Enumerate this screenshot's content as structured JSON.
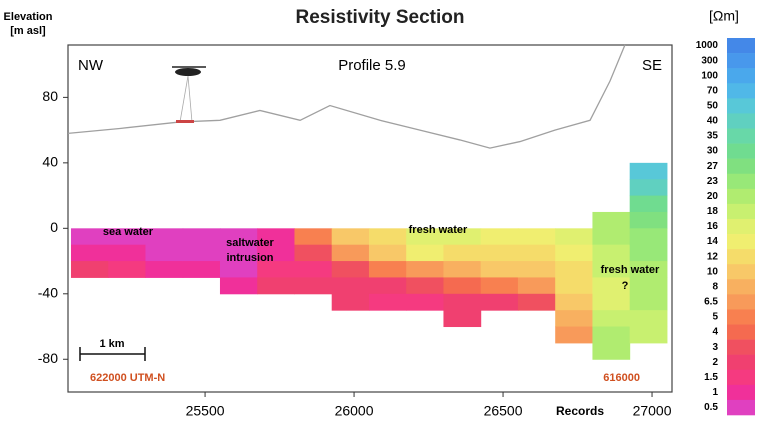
{
  "chart_data": {
    "type": "section",
    "title": "Resistivity Section",
    "y_label": [
      "Elevation",
      "[m asl]"
    ],
    "x_label": "Records",
    "annotations": {
      "left_end": "NW",
      "right_end": "SE",
      "profile": "Profile 5.9",
      "sea": "sea water",
      "intrusion": [
        "saltwater",
        "intrusion"
      ],
      "fresh": "fresh water",
      "fresh_deep": [
        "fresh water",
        "?"
      ],
      "scale": "1 km",
      "utm_left": "622000   UTM-N",
      "utm_right": "616000"
    },
    "xlim": [
      25040,
      27067
    ],
    "xticks": [
      25500,
      26000,
      26500,
      27000
    ],
    "ylim": [
      -100,
      112
    ],
    "yticks": [
      -80,
      -40,
      0,
      40,
      80
    ],
    "lines": [
      {
        "color": "#a0a0a0",
        "x": [
          25040,
          25214,
          25416,
          25550,
          25684,
          25819,
          25919,
          26087,
          26221,
          26355,
          26456,
          26557,
          26674,
          26792,
          26859,
          26909
        ],
        "values": [
          58,
          61,
          65,
          66,
          72,
          66,
          75,
          66,
          60,
          54,
          49,
          53,
          60,
          66,
          90,
          112
        ]
      }
    ],
    "section": {
      "x": [
        25050,
        25175,
        25300,
        25425,
        25550,
        25675,
        25800,
        25925,
        26050,
        26175,
        26300,
        26425,
        26550,
        26675,
        26800,
        26925,
        27050
      ],
      "y": [
        40,
        30,
        20,
        10,
        0,
        -10,
        -20,
        -30,
        -40,
        -50,
        -60,
        -70,
        -80
      ],
      "values": [
        [
          null,
          null,
          null,
          null,
          0.5,
          1,
          2,
          null,
          null,
          null,
          null,
          null
        ],
        [
          null,
          null,
          null,
          null,
          0.5,
          1,
          1.5,
          null,
          null,
          null,
          null,
          null
        ],
        [
          null,
          null,
          null,
          null,
          0.5,
          0.5,
          1,
          null,
          null,
          null,
          null,
          null
        ],
        [
          null,
          null,
          null,
          null,
          0.5,
          0.5,
          1,
          null,
          null,
          null,
          null,
          null
        ],
        [
          null,
          null,
          null,
          null,
          0.5,
          0.5,
          0.5,
          1,
          null,
          null,
          null,
          null
        ],
        [
          null,
          null,
          null,
          null,
          1,
          1,
          1.5,
          2,
          null,
          null,
          null,
          null
        ],
        [
          null,
          null,
          null,
          null,
          5,
          3,
          1.5,
          2,
          null,
          null,
          null,
          null
        ],
        [
          null,
          null,
          null,
          null,
          10,
          6.5,
          3,
          2,
          2,
          null,
          null,
          null
        ],
        [
          null,
          null,
          null,
          null,
          12,
          10,
          5,
          2,
          1.5,
          null,
          null,
          null
        ],
        [
          null,
          null,
          null,
          null,
          16,
          14,
          6.5,
          3,
          1.5,
          null,
          null,
          null
        ],
        [
          null,
          null,
          null,
          null,
          16,
          12,
          8,
          4,
          2,
          2,
          null,
          null
        ],
        [
          null,
          null,
          null,
          null,
          14,
          12,
          10,
          5,
          2,
          null,
          null,
          null
        ],
        [
          null,
          null,
          null,
          null,
          14,
          12,
          10,
          6.5,
          3,
          null,
          null,
          null
        ],
        [
          null,
          null,
          null,
          null,
          16,
          14,
          12,
          12,
          10,
          8,
          6.5,
          null
        ],
        [
          null,
          null,
          null,
          20,
          20,
          18,
          18,
          16,
          16,
          18,
          20,
          20
        ],
        [
          50,
          40,
          30,
          27,
          23,
          23,
          20,
          20,
          20,
          18,
          18,
          null
        ]
      ]
    },
    "colorbar": {
      "unit": "[Ωm]",
      "levels": [
        1000,
        300,
        100,
        70,
        50,
        40,
        35,
        30,
        27,
        23,
        20,
        18,
        16,
        14,
        12,
        10,
        8,
        6.5,
        5,
        4,
        3,
        2,
        1.5,
        1,
        0.5
      ],
      "colors": [
        "#4488e8",
        "#4898ec",
        "#4aa8ec",
        "#50b8e8",
        "#58c8d8",
        "#60d0c0",
        "#68d8a8",
        "#70dc90",
        "#80e080",
        "#98e878",
        "#b0ec70",
        "#c8f070",
        "#e0f070",
        "#f0ee70",
        "#f5dc6a",
        "#f8c868",
        "#f8b060",
        "#f89a5a",
        "#f88050",
        "#f56a50",
        "#f05060",
        "#f04070",
        "#f53a80",
        "#f0309a",
        "#e040c0"
      ]
    }
  }
}
